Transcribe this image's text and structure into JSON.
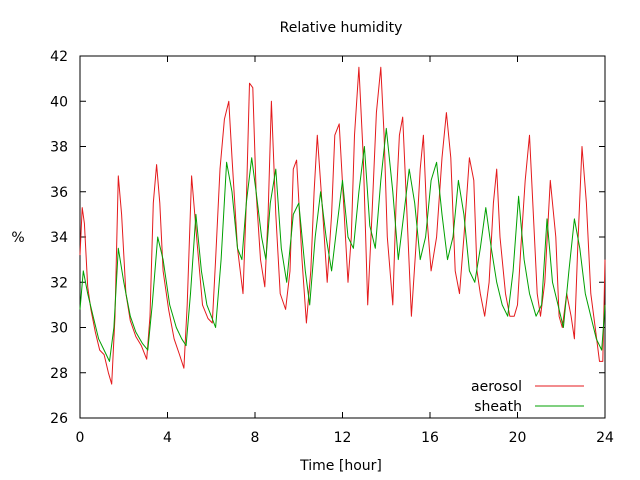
{
  "chart_data": {
    "type": "line",
    "title": "Relative humidity",
    "xlabel": "Time [hour]",
    "ylabel": "%",
    "xlim": [
      0,
      24
    ],
    "ylim": [
      26,
      42
    ],
    "xticks": [
      0,
      4,
      8,
      12,
      16,
      20,
      24
    ],
    "yticks": [
      26,
      28,
      30,
      32,
      34,
      36,
      38,
      40,
      42
    ],
    "grid": false,
    "legend_position": "bottom-right",
    "series": [
      {
        "name": "aerosol",
        "color": "#e41a1c",
        "x": [
          0.0,
          0.1,
          0.2,
          0.35,
          0.5,
          0.7,
          0.9,
          1.1,
          1.3,
          1.45,
          1.6,
          1.75,
          1.9,
          2.1,
          2.3,
          2.55,
          2.8,
          3.05,
          3.2,
          3.35,
          3.5,
          3.65,
          3.8,
          4.05,
          4.3,
          4.55,
          4.75,
          4.9,
          5.1,
          5.35,
          5.6,
          5.85,
          6.05,
          6.2,
          6.4,
          6.6,
          6.8,
          6.95,
          7.2,
          7.45,
          7.6,
          7.75,
          7.9,
          8.05,
          8.25,
          8.45,
          8.6,
          8.75,
          8.95,
          9.15,
          9.4,
          9.6,
          9.75,
          9.9,
          10.15,
          10.35,
          10.55,
          10.7,
          10.85,
          11.1,
          11.3,
          11.5,
          11.65,
          11.85,
          12.05,
          12.25,
          12.4,
          12.55,
          12.75,
          12.95,
          13.15,
          13.35,
          13.55,
          13.75,
          13.9,
          14.05,
          14.3,
          14.45,
          14.6,
          14.75,
          14.95,
          15.15,
          15.35,
          15.55,
          15.7,
          15.85,
          16.05,
          16.3,
          16.55,
          16.75,
          16.95,
          17.15,
          17.35,
          17.55,
          17.8,
          18.0,
          18.15,
          18.3,
          18.5,
          18.7,
          18.9,
          19.05,
          19.2,
          19.45,
          19.65,
          19.85,
          20.0,
          20.15,
          20.35,
          20.55,
          20.75,
          20.9,
          21.05,
          21.25,
          21.5,
          21.75,
          21.9,
          22.05,
          22.25,
          22.45,
          22.6,
          22.75,
          22.95,
          23.15,
          23.35,
          23.55,
          23.75,
          23.9,
          24.0
        ],
        "values": [
          33.2,
          35.3,
          34.6,
          31.8,
          30.8,
          29.8,
          29.0,
          28.8,
          28.0,
          27.5,
          30.5,
          36.7,
          35.0,
          31.5,
          30.3,
          29.6,
          29.2,
          28.6,
          30.5,
          35.5,
          37.2,
          35.5,
          32.5,
          30.8,
          29.5,
          28.8,
          28.2,
          31.0,
          36.7,
          33.8,
          31.0,
          30.4,
          30.2,
          33.0,
          37.0,
          39.2,
          40.0,
          37.5,
          33.5,
          31.5,
          35.5,
          40.8,
          40.6,
          36.0,
          33.0,
          31.8,
          35.0,
          40.0,
          35.0,
          31.5,
          30.8,
          32.5,
          37.0,
          37.4,
          33.0,
          30.2,
          32.5,
          36.0,
          38.5,
          35.0,
          32.0,
          35.0,
          38.5,
          39.0,
          35.5,
          32.0,
          34.0,
          38.5,
          41.5,
          37.5,
          31.0,
          35.0,
          39.5,
          41.5,
          38.5,
          34.0,
          31.0,
          35.5,
          38.5,
          39.3,
          35.0,
          30.5,
          33.5,
          37.0,
          38.5,
          35.0,
          32.5,
          34.0,
          37.5,
          39.5,
          37.5,
          32.5,
          31.5,
          34.0,
          37.5,
          36.5,
          32.5,
          31.5,
          30.5,
          32.0,
          35.5,
          37.0,
          34.0,
          31.5,
          30.5,
          30.5,
          31.0,
          33.5,
          36.5,
          38.5,
          34.5,
          31.5,
          30.5,
          32.0,
          36.5,
          34.0,
          30.5,
          30.0,
          31.5,
          30.5,
          29.5,
          33.5,
          38.0,
          35.5,
          31.5,
          30.0,
          28.5,
          28.5,
          33.0
        ]
      },
      {
        "name": "sheath",
        "color": "#00a000",
        "x": [
          0.0,
          0.15,
          0.35,
          0.6,
          0.85,
          1.1,
          1.35,
          1.55,
          1.75,
          2.0,
          2.3,
          2.55,
          2.85,
          3.1,
          3.3,
          3.55,
          3.8,
          4.1,
          4.4,
          4.65,
          4.85,
          5.05,
          5.3,
          5.55,
          5.8,
          6.0,
          6.2,
          6.45,
          6.7,
          6.95,
          7.2,
          7.4,
          7.6,
          7.85,
          8.05,
          8.3,
          8.5,
          8.7,
          8.95,
          9.2,
          9.45,
          9.75,
          10.0,
          10.3,
          10.5,
          10.75,
          11.0,
          11.25,
          11.5,
          11.75,
          12.0,
          12.25,
          12.5,
          12.75,
          13.0,
          13.25,
          13.5,
          13.75,
          14.0,
          14.3,
          14.55,
          14.8,
          15.05,
          15.3,
          15.55,
          15.8,
          16.05,
          16.3,
          16.55,
          16.8,
          17.05,
          17.3,
          17.55,
          17.8,
          18.05,
          18.3,
          18.55,
          18.8,
          19.05,
          19.3,
          19.55,
          19.8,
          20.05,
          20.3,
          20.55,
          20.85,
          21.1,
          21.35,
          21.6,
          21.85,
          22.1,
          22.35,
          22.6,
          22.85,
          23.1,
          23.35,
          23.6,
          23.85,
          24.0
        ],
        "values": [
          30.8,
          32.5,
          31.5,
          30.5,
          29.5,
          29.0,
          28.5,
          30.0,
          33.5,
          32.0,
          30.5,
          29.8,
          29.3,
          29.0,
          31.0,
          34.0,
          33.0,
          31.0,
          30.0,
          29.5,
          29.2,
          31.5,
          35.0,
          32.5,
          31.0,
          30.5,
          30.0,
          33.0,
          37.3,
          36.0,
          33.5,
          33.0,
          35.5,
          37.5,
          36.0,
          34.0,
          33.0,
          35.5,
          37.0,
          33.5,
          32.0,
          35.0,
          35.5,
          32.5,
          31.0,
          34.0,
          36.0,
          34.0,
          32.5,
          34.5,
          36.5,
          34.0,
          33.5,
          36.0,
          38.0,
          34.5,
          33.5,
          36.5,
          38.8,
          36.0,
          33.0,
          35.0,
          37.0,
          35.5,
          33.0,
          34.0,
          36.5,
          37.3,
          35.0,
          33.0,
          34.0,
          36.5,
          35.0,
          32.5,
          32.0,
          33.5,
          35.3,
          33.5,
          32.0,
          31.0,
          30.5,
          32.5,
          35.8,
          33.0,
          31.5,
          30.5,
          31.0,
          34.8,
          32.0,
          31.0,
          30.0,
          32.5,
          34.8,
          33.5,
          31.5,
          30.5,
          29.5,
          29.0,
          31.0
        ]
      }
    ]
  }
}
